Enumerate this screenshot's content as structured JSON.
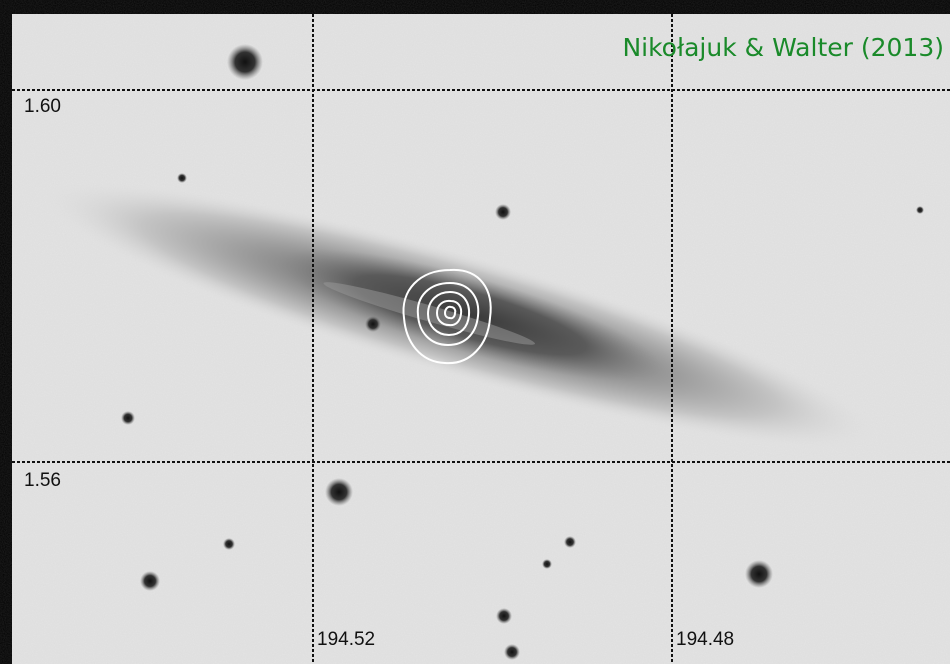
{
  "title": "Nikołajuk & Walter (2013)",
  "grid": {
    "dec_labels": [
      "1.60",
      "1.56"
    ],
    "ra_labels": [
      "194.52",
      "194.48"
    ]
  }
}
